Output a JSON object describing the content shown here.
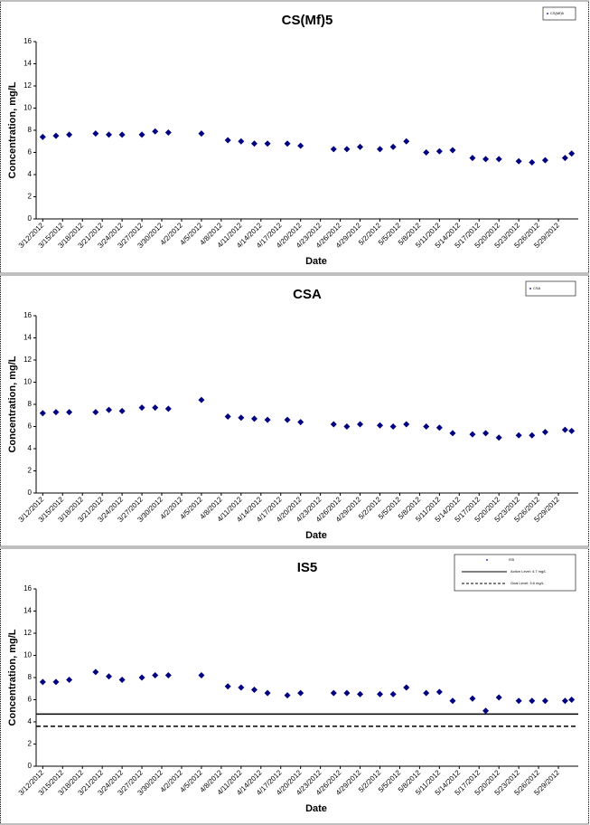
{
  "chart_data": [
    {
      "type": "scatter",
      "title": "CS(Mf)5",
      "x_label": "Date",
      "y_label": "Concentration, mg/L",
      "legend": "upper right",
      "xlim": [
        "3/11/2012",
        "6/1/2012"
      ],
      "xticks": [
        "3/12/2012",
        "3/15/2012",
        "3/18/2012",
        "3/21/2012",
        "3/24/2012",
        "3/27/2012",
        "3/30/2012",
        "4/2/2012",
        "4/5/2012",
        "4/8/2012",
        "4/11/2012",
        "4/14/2012",
        "4/17/2012",
        "4/20/2012",
        "4/23/2012",
        "4/26/2012",
        "4/29/2012",
        "5/2/2012",
        "5/5/2012",
        "5/8/2012",
        "5/11/2012",
        "5/14/2012",
        "5/17/2012",
        "5/20/2012",
        "5/23/2012",
        "5/26/2012",
        "5/29/2012"
      ],
      "ylim": [
        0,
        16
      ],
      "yticks": [
        0,
        2,
        4,
        6,
        8,
        10,
        12,
        14,
        16
      ],
      "series": [
        {
          "name": "CS(Mf)5",
          "color": "#000080",
          "x": [
            "3/12/2012",
            "3/14/2012",
            "3/16/2012",
            "3/20/2012",
            "3/22/2012",
            "3/24/2012",
            "3/27/2012",
            "3/29/2012",
            "3/31/2012",
            "4/5/2012",
            "4/9/2012",
            "4/11/2012",
            "4/13/2012",
            "4/15/2012",
            "4/18/2012",
            "4/20/2012",
            "4/25/2012",
            "4/27/2012",
            "4/29/2012",
            "5/2/2012",
            "5/4/2012",
            "5/6/2012",
            "5/9/2012",
            "5/11/2012",
            "5/13/2012",
            "5/16/2012",
            "5/18/2012",
            "5/20/2012",
            "5/23/2012",
            "5/25/2012",
            "5/27/2012",
            "5/30/2012",
            "5/31/2012"
          ],
          "values": [
            7.4,
            7.5,
            7.6,
            7.7,
            7.6,
            7.6,
            7.6,
            7.9,
            7.8,
            7.7,
            7.1,
            7.0,
            6.8,
            6.8,
            6.8,
            6.6,
            6.3,
            6.3,
            6.5,
            6.3,
            6.5,
            7.0,
            6.0,
            6.1,
            6.2,
            5.5,
            5.4,
            5.4,
            5.2,
            5.1,
            5.3,
            5.5,
            5.9
          ]
        }
      ]
    },
    {
      "type": "scatter",
      "title": "CSA",
      "x_label": "Date",
      "y_label": "Concentration, mg/L",
      "legend": "upper right",
      "xlim": [
        "3/11/2012",
        "6/1/2012"
      ],
      "xticks": [
        "3/12/2012",
        "3/15/2012",
        "3/18/2012",
        "3/21/2012",
        "3/24/2012",
        "3/27/2012",
        "3/30/2012",
        "4/2/2012",
        "4/5/2012",
        "4/8/2012",
        "4/11/2012",
        "4/14/2012",
        "4/17/2012",
        "4/20/2012",
        "4/23/2012",
        "4/26/2012",
        "4/29/2012",
        "5/2/2012",
        "5/5/2012",
        "5/8/2012",
        "5/11/2012",
        "5/14/2012",
        "5/17/2012",
        "5/20/2012",
        "5/23/2012",
        "5/26/2012",
        "5/29/2012"
      ],
      "ylim": [
        0,
        16
      ],
      "yticks": [
        0,
        2,
        4,
        6,
        8,
        10,
        12,
        14,
        16
      ],
      "series": [
        {
          "name": "CSA",
          "color": "#000080",
          "x": [
            "3/12/2012",
            "3/14/2012",
            "3/16/2012",
            "3/20/2012",
            "3/22/2012",
            "3/24/2012",
            "3/27/2012",
            "3/29/2012",
            "3/31/2012",
            "4/5/2012",
            "4/9/2012",
            "4/11/2012",
            "4/13/2012",
            "4/15/2012",
            "4/18/2012",
            "4/20/2012",
            "4/25/2012",
            "4/27/2012",
            "4/29/2012",
            "5/2/2012",
            "5/4/2012",
            "5/6/2012",
            "5/9/2012",
            "5/11/2012",
            "5/13/2012",
            "5/16/2012",
            "5/18/2012",
            "5/20/2012",
            "5/23/2012",
            "5/25/2012",
            "5/27/2012",
            "5/30/2012",
            "5/31/2012"
          ],
          "values": [
            7.2,
            7.3,
            7.3,
            7.3,
            7.5,
            7.4,
            7.7,
            7.7,
            7.6,
            8.4,
            6.9,
            6.8,
            6.7,
            6.6,
            6.6,
            6.4,
            6.2,
            6.0,
            6.2,
            6.1,
            6.0,
            6.2,
            6.0,
            5.9,
            5.4,
            5.3,
            5.4,
            5.0,
            5.2,
            5.2,
            5.5,
            5.7,
            5.6
          ]
        }
      ]
    },
    {
      "type": "scatter",
      "title": "IS5",
      "x_label": "Date",
      "y_label": "Concentration, mg/L",
      "legend": "upper right",
      "xlim": [
        "3/11/2012",
        "6/1/2012"
      ],
      "xticks": [
        "3/12/2012",
        "3/15/2012",
        "3/18/2012",
        "3/21/2012",
        "3/24/2012",
        "3/27/2012",
        "3/30/2012",
        "4/2/2012",
        "4/5/2012",
        "4/8/2012",
        "4/11/2012",
        "4/14/2012",
        "4/17/2012",
        "4/20/2012",
        "4/23/2012",
        "4/26/2012",
        "4/29/2012",
        "5/2/2012",
        "5/5/2012",
        "5/8/2012",
        "5/11/2012",
        "5/14/2012",
        "5/17/2012",
        "5/20/2012",
        "5/23/2012",
        "5/26/2012",
        "5/29/2012"
      ],
      "ylim": [
        0,
        16
      ],
      "yticks": [
        0,
        2,
        4,
        6,
        8,
        10,
        12,
        14,
        16
      ],
      "series": [
        {
          "name": "IS5",
          "color": "#000080",
          "x": [
            "3/12/2012",
            "3/14/2012",
            "3/16/2012",
            "3/20/2012",
            "3/22/2012",
            "3/24/2012",
            "3/27/2012",
            "3/29/2012",
            "3/31/2012",
            "4/5/2012",
            "4/9/2012",
            "4/11/2012",
            "4/13/2012",
            "4/15/2012",
            "4/18/2012",
            "4/20/2012",
            "4/25/2012",
            "4/27/2012",
            "4/29/2012",
            "5/2/2012",
            "5/4/2012",
            "5/6/2012",
            "5/9/2012",
            "5/11/2012",
            "5/13/2012",
            "5/16/2012",
            "5/18/2012",
            "5/20/2012",
            "5/23/2012",
            "5/25/2012",
            "5/27/2012",
            "5/30/2012",
            "5/31/2012"
          ],
          "values": [
            7.6,
            7.6,
            7.8,
            8.5,
            8.1,
            7.8,
            8.0,
            8.2,
            8.2,
            8.2,
            7.2,
            7.1,
            6.9,
            6.6,
            6.4,
            6.6,
            6.6,
            6.6,
            6.5,
            6.5,
            6.5,
            7.1,
            6.6,
            6.7,
            5.9,
            6.1,
            5.0,
            6.2,
            5.9,
            5.9,
            5.9,
            5.9,
            6.0
          ]
        }
      ],
      "reference_lines": [
        {
          "name": "Action Level: 4.7 mg/L",
          "value": 4.7,
          "style": "solid",
          "color": "#000000"
        },
        {
          "name": "Goal Level: 3.6 mg/L",
          "value": 3.6,
          "style": "dashed",
          "color": "#000000"
        }
      ]
    }
  ]
}
